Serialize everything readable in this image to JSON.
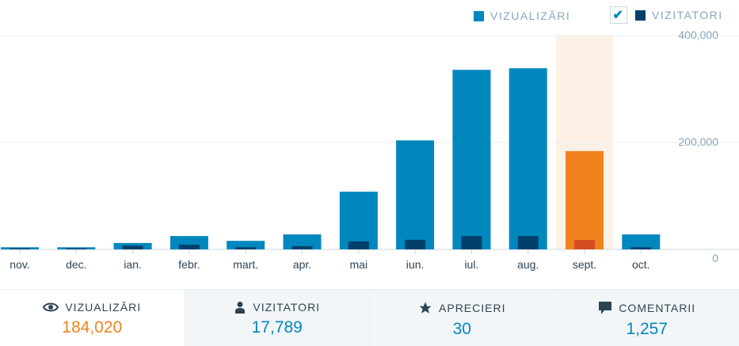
{
  "legend": {
    "views": {
      "label": "VIZUALIZĂRI",
      "color": "#0087be"
    },
    "visitors": {
      "label": "VIZITATORI",
      "color": "#00406b",
      "checked": true
    }
  },
  "chart_data": {
    "type": "bar",
    "categories": [
      "nov.",
      "dec.",
      "ian.",
      "febr.",
      "mart.",
      "apr.",
      "mai",
      "iun.",
      "iul.",
      "aug.",
      "sept.",
      "oct."
    ],
    "series": [
      {
        "name": "VIZUALIZĂRI",
        "values": [
          4000,
          4000,
          12000,
          25000,
          16000,
          28000,
          108000,
          204000,
          336000,
          339000,
          184020,
          28000
        ],
        "color": "#0087be"
      },
      {
        "name": "VIZITATORI",
        "values": [
          2000,
          2000,
          7000,
          9000,
          4000,
          6000,
          15000,
          18000,
          25000,
          25000,
          17789,
          4000
        ],
        "color": "#00406b"
      }
    ],
    "highlight_index": 10,
    "highlight_colors": {
      "views": "#f0821e",
      "visitors": "#d54e21",
      "band": "#fdf1e6"
    },
    "yticks": [
      "0",
      "200,000",
      "400,000"
    ],
    "ylim": [
      0,
      400000
    ],
    "grid": true
  },
  "stats": [
    {
      "label": "VIZUALIZĂRI",
      "value": "184,020",
      "icon": "eye-icon"
    },
    {
      "label": "VIZITATORI",
      "value": "17,789",
      "icon": "person-icon"
    },
    {
      "label": "APRECIERI",
      "value": "30",
      "icon": "star-icon"
    },
    {
      "label": "COMENTARII",
      "value": "1,257",
      "icon": "comment-icon"
    }
  ]
}
